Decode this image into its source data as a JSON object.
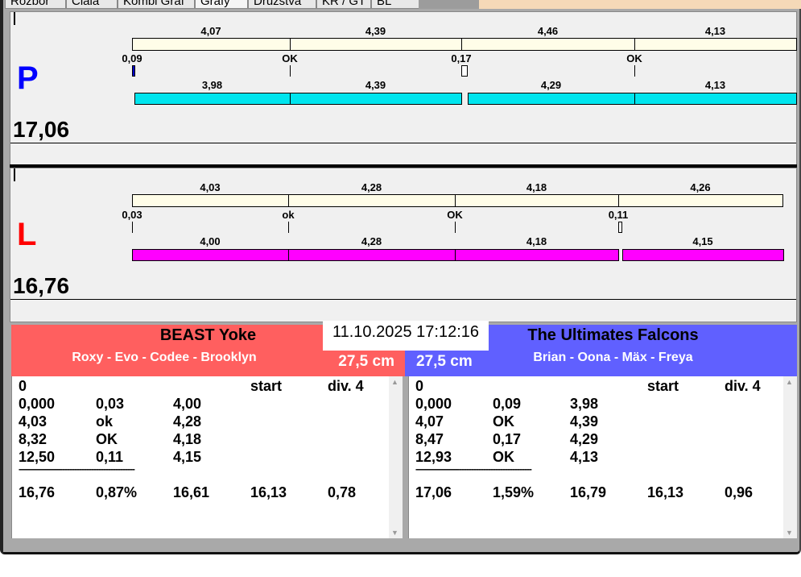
{
  "tabs": [
    "Rozbor",
    "Ciala",
    "Kombi Graf",
    "Grafy",
    "Družstva",
    "KR / GT",
    "BL"
  ],
  "legend_colors": [
    "#ff0000",
    "#ffff00",
    "#ffff00",
    "#00ff00"
  ],
  "lanes": [
    {
      "letter": "P",
      "letter_color": "#0000ff",
      "total": "17,06",
      "top_labels": [
        "4,07",
        "4,39",
        "4,46",
        "4,13"
      ],
      "mid_labels": [
        "0,09",
        "OK",
        "0,17",
        "OK"
      ],
      "bottom_labels": [
        "3,98",
        "4,39",
        "4,29",
        "4,13"
      ],
      "bottom_color": "#00e5ee",
      "top_color": "#fffde8"
    },
    {
      "letter": "L",
      "letter_color": "#ff0000",
      "total": "16,76",
      "top_labels": [
        "4,03",
        "4,28",
        "4,18",
        "4,26"
      ],
      "mid_labels": [
        "0,03",
        "ok",
        "OK",
        "0,11"
      ],
      "bottom_labels": [
        "4,00",
        "4,28",
        "4,18",
        "4,15"
      ],
      "bottom_color": "#ff00ff",
      "top_color": "#fffde8"
    }
  ],
  "datetime": "11.10.2025 17:12:16",
  "teams": [
    {
      "name": "BEAST Yoke",
      "members": "Roxy - Evo - Codee - Brooklyn",
      "height": "27,5 cm",
      "color": "#ff5f5f",
      "header": [
        "0",
        "",
        "",
        "start",
        "div.  4"
      ],
      "rows": [
        [
          "0,000",
          "0,03",
          "4,00"
        ],
        [
          "4,03",
          "ok",
          "4,28"
        ],
        [
          "8,32",
          "OK",
          "4,18"
        ],
        [
          "12,50",
          "0,11",
          "4,15"
        ]
      ],
      "separator": "------------------------------------------------",
      "totals": [
        "16,76",
        "0,87%",
        "16,61",
        "16,13",
        "0,78"
      ]
    },
    {
      "name": "The Ultimates Falcons",
      "members": "Brian - Oona - Mäx - Freya",
      "height": "27,5 cm",
      "color": "#6060ff",
      "header": [
        "0",
        "",
        "",
        "start",
        "div.  4"
      ],
      "rows": [
        [
          "0,000",
          "0,09",
          "3,98"
        ],
        [
          "4,07",
          "OK",
          "4,39"
        ],
        [
          "8,47",
          "0,17",
          "4,29"
        ],
        [
          "12,93",
          "OK",
          "4,13"
        ]
      ],
      "separator": "------------------------------------------------",
      "totals": [
        "17,06",
        "1,59%",
        "16,79",
        "16,13",
        "0,96"
      ]
    }
  ]
}
